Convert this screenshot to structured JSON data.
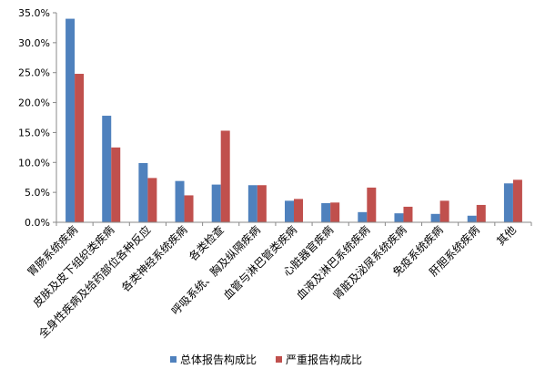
{
  "chart_data": {
    "type": "bar",
    "categories": [
      "胃肠系统疾病",
      "皮肤及皮下组织类疾病",
      "全身性疾病及给药部位各种反应",
      "各类神经系统疾病",
      "各类检查",
      "呼吸系统、胸及纵隔疾病",
      "血管与淋巴管类疾病",
      "心脏器官疾病",
      "血液及淋巴系统疾病",
      "肾脏及泌尿系统疾病",
      "免疫系统疾病",
      "肝胆系统疾病",
      "其他"
    ],
    "series": [
      {
        "name": "总体报告构成比",
        "color": "#4F81BD",
        "values": [
          34.0,
          17.8,
          9.9,
          6.9,
          6.3,
          6.2,
          3.6,
          3.2,
          1.7,
          1.5,
          1.4,
          1.1,
          6.5
        ]
      },
      {
        "name": "严重报告构成比",
        "color": "#C0504D",
        "values": [
          24.8,
          12.5,
          7.4,
          4.5,
          15.3,
          6.2,
          3.9,
          3.3,
          5.8,
          2.6,
          3.6,
          2.9,
          7.1
        ]
      }
    ],
    "y_ticks": [
      "0.0%",
      "5.0%",
      "10.0%",
      "15.0%",
      "20.0%",
      "25.0%",
      "30.0%",
      "35.0%"
    ],
    "ylim": [
      0,
      35
    ],
    "grid": false,
    "legend_position": "bottom",
    "title": "",
    "xlabel": "",
    "ylabel": ""
  }
}
